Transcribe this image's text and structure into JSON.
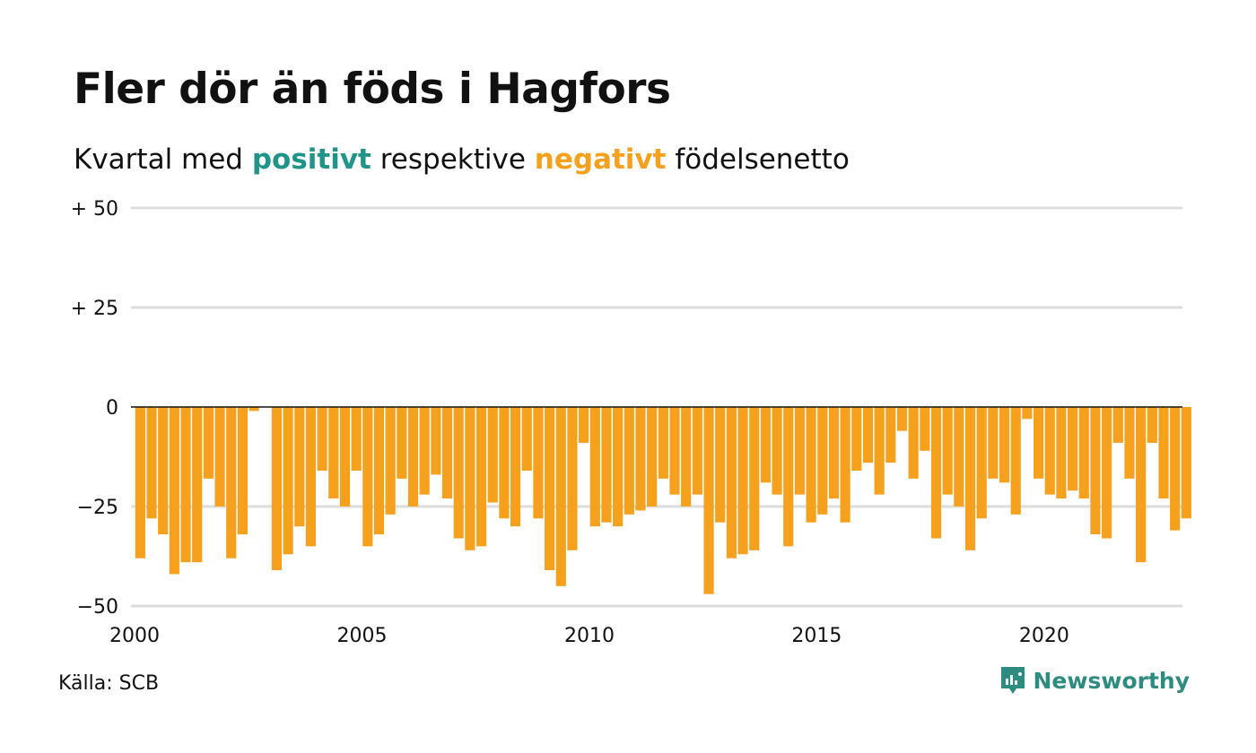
{
  "title": "Fler dör än föds i Hagfors",
  "subtitle": {
    "prefix": "Kvartal med ",
    "positive": "positivt",
    "middle": " respektive ",
    "negative": "negativt",
    "suffix": " födelsenetto"
  },
  "colors": {
    "positive": "#1f9488",
    "negative": "#f5a11e",
    "grid": "#dddddd",
    "zero_line": "#111111",
    "brand": "#2e8b80"
  },
  "chart_data": {
    "type": "bar",
    "title": "Fler dör än föds i Hagfors",
    "subtitle": "Kvartal med positivt respektive negativt födelsenetto",
    "xlabel": "",
    "ylabel": "",
    "ylim": [
      -50,
      50
    ],
    "xlim": [
      2000,
      2023
    ],
    "x_ticks": [
      "2000",
      "2005",
      "2010",
      "2015",
      "2020"
    ],
    "y_ticks": [
      {
        "value": 50,
        "label": "+ 50"
      },
      {
        "value": 25,
        "label": "+ 25"
      },
      {
        "value": 0,
        "label": "0"
      },
      {
        "value": -25,
        "label": "−25"
      },
      {
        "value": -50,
        "label": "−50"
      }
    ],
    "grid": true,
    "legend": "none",
    "start_year": 2000,
    "periods_per_year": 4,
    "values": [
      -38,
      -28,
      -32,
      -42,
      -39,
      -39,
      -18,
      -25,
      -38,
      -32,
      -1,
      0,
      -41,
      -37,
      -30,
      -35,
      -16,
      -23,
      -25,
      -16,
      -35,
      -32,
      -27,
      -18,
      -25,
      -22,
      -17,
      -23,
      -33,
      -36,
      -35,
      -24,
      -28,
      -30,
      -16,
      -28,
      -41,
      -45,
      -36,
      -9,
      -30,
      -29,
      -30,
      -27,
      -26,
      -25,
      -18,
      -22,
      -25,
      -22,
      -47,
      -29,
      -38,
      -37,
      -36,
      -19,
      -22,
      -35,
      -22,
      -29,
      -27,
      -23,
      -29,
      -16,
      -14,
      -22,
      -14,
      -6,
      -18,
      -11,
      -33,
      -22,
      -25,
      -36,
      -28,
      -18,
      -19,
      -27,
      -3,
      -18,
      -22,
      -23,
      -21,
      -23,
      -32,
      -33,
      -9,
      -18,
      -39,
      -9,
      -23,
      -31,
      -28
    ]
  },
  "footer": {
    "source": "Källa: SCB",
    "brand": "Newsworthy"
  }
}
